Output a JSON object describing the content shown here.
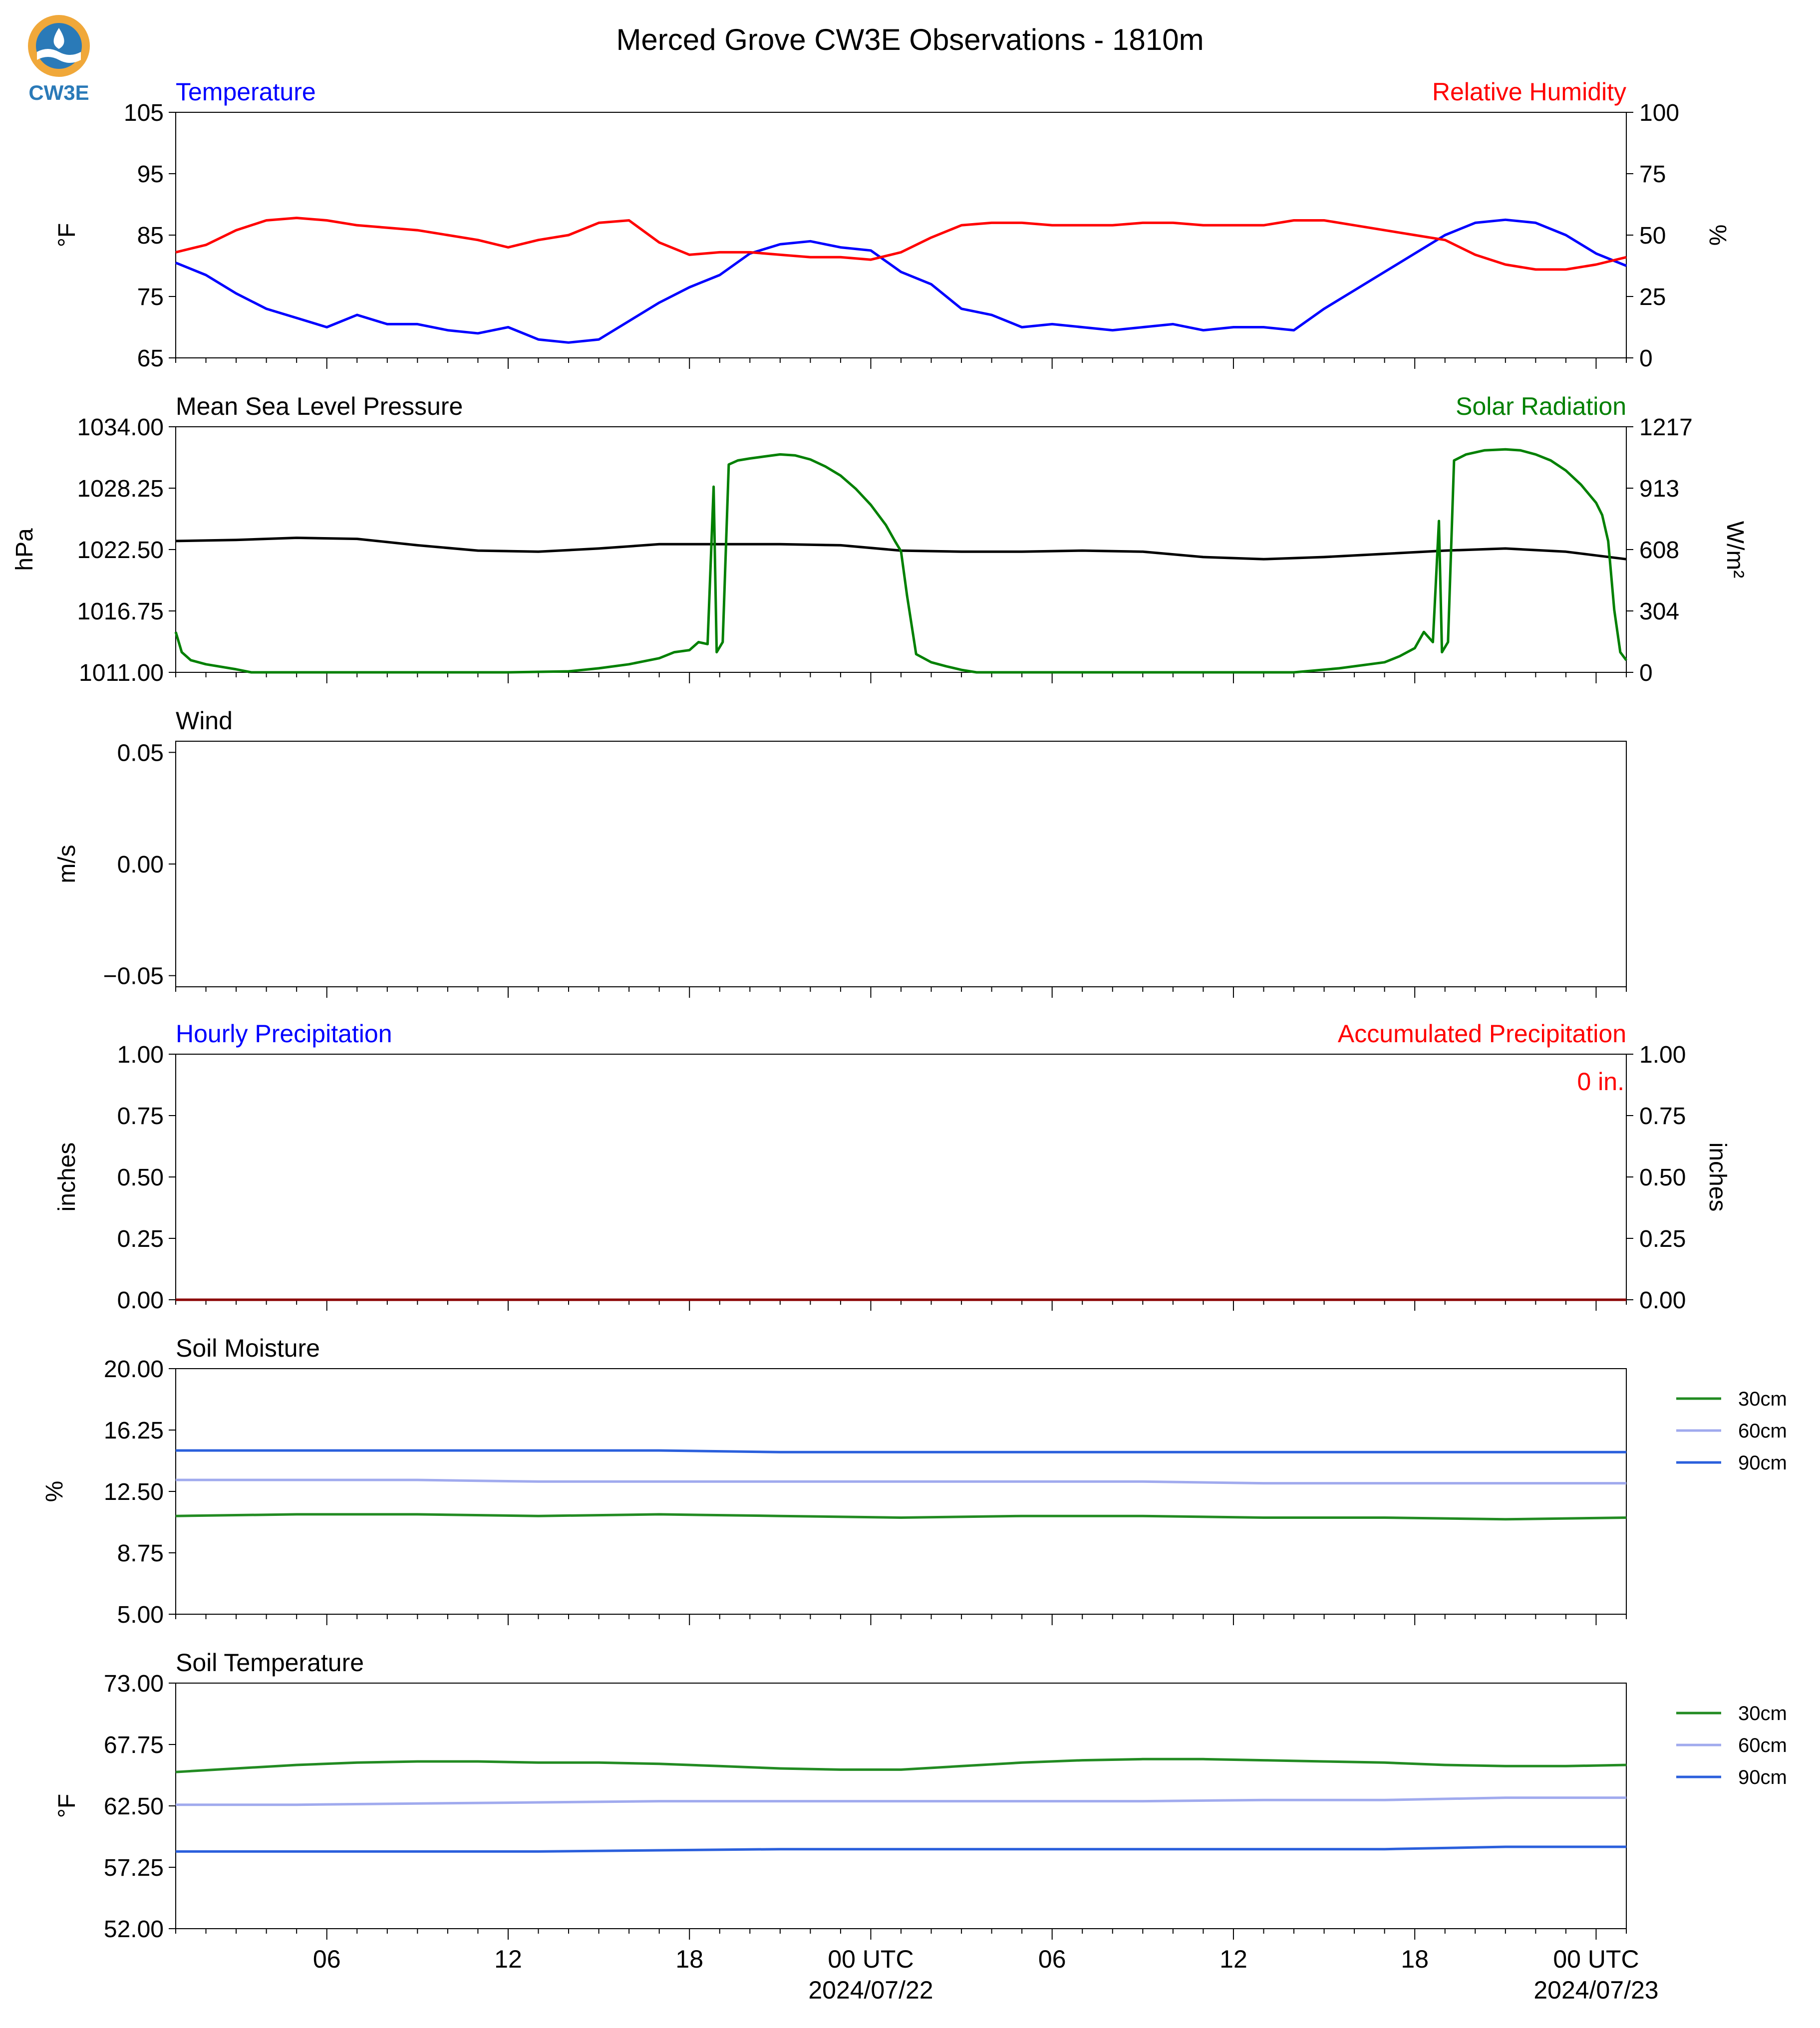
{
  "page": {
    "title": "Merced Grove CW3E Observations - 1810m"
  },
  "logo": {
    "text": "CW3E"
  },
  "time_axis": {
    "start_hours": 0,
    "end_hours": 48,
    "tick_hours": [
      5,
      11,
      17,
      23,
      29,
      35,
      41,
      47
    ],
    "tick_labels": [
      "06",
      "12",
      "18",
      "00 UTC",
      "06",
      "12",
      "18",
      "00 UTC"
    ],
    "date_labels": [
      "",
      "",
      "",
      "2024/07/22",
      "",
      "",
      "",
      "2024/07/23"
    ],
    "minor_tick_hours": [
      0,
      1,
      2,
      3,
      4,
      6,
      7,
      8,
      9,
      10,
      12,
      13,
      14,
      15,
      16,
      18,
      19,
      20,
      21,
      22,
      24,
      25,
      26,
      27,
      28,
      30,
      31,
      32,
      33,
      34,
      36,
      37,
      38,
      39,
      40,
      42,
      43,
      44,
      45,
      46,
      48
    ]
  },
  "chart_data": [
    {
      "type": "line",
      "title_left": "Temperature",
      "title_right": "Relative Humidity",
      "title_left_color": "#0000ff",
      "title_right_color": "#ff0000",
      "ylabel": "°F",
      "ylabel_right": "%",
      "ylim": [
        65,
        105
      ],
      "yticks": [
        "65",
        "75",
        "85",
        "95",
        "105"
      ],
      "ylim_right": [
        0,
        100
      ],
      "yticks_right": [
        "0",
        "25",
        "50",
        "75",
        "100"
      ],
      "series": [
        {
          "axis": "left",
          "color": "#0000ff",
          "x": [
            0,
            1,
            2,
            3,
            4,
            5,
            6,
            7,
            8,
            9,
            10,
            11,
            12,
            13,
            14,
            15,
            16,
            17,
            18,
            19,
            20,
            21,
            22,
            23,
            24,
            25,
            26,
            27,
            28,
            29,
            30,
            31,
            32,
            33,
            34,
            35,
            36,
            37,
            38,
            39,
            40,
            41,
            42,
            43,
            44,
            45,
            46,
            47,
            48
          ],
          "values": [
            80.5,
            78.5,
            75.5,
            73,
            71.5,
            70,
            72,
            70.5,
            70.5,
            69.5,
            69,
            70,
            68,
            67.5,
            68,
            71,
            74,
            76.5,
            78.5,
            82,
            83.5,
            84,
            83,
            82.5,
            79,
            77,
            73,
            72,
            70,
            70.5,
            70,
            69.5,
            70,
            70.5,
            69.5,
            70,
            70,
            69.5,
            73,
            76,
            79,
            82,
            85,
            87,
            87.5,
            87,
            85,
            82,
            80
          ]
        },
        {
          "axis": "right",
          "color": "#ff0000",
          "x": [
            0,
            1,
            2,
            3,
            4,
            5,
            6,
            7,
            8,
            9,
            10,
            11,
            12,
            13,
            14,
            15,
            16,
            17,
            18,
            19,
            20,
            21,
            22,
            23,
            24,
            25,
            26,
            27,
            28,
            29,
            30,
            31,
            32,
            33,
            34,
            35,
            36,
            37,
            38,
            39,
            40,
            41,
            42,
            43,
            44,
            45,
            46,
            47,
            48
          ],
          "values": [
            43,
            46,
            52,
            56,
            57,
            56,
            54,
            53,
            52,
            50,
            48,
            45,
            48,
            50,
            55,
            56,
            47,
            42,
            43,
            43,
            42,
            41,
            41,
            40,
            43,
            49,
            54,
            55,
            55,
            54,
            54,
            54,
            55,
            55,
            54,
            54,
            54,
            56,
            56,
            54,
            52,
            50,
            48,
            42,
            38,
            36,
            36,
            38,
            41
          ]
        }
      ]
    },
    {
      "type": "line",
      "title_left": "Mean Sea Level Pressure",
      "title_right": "Solar Radiation",
      "title_left_color": "#000000",
      "title_right_color": "#008000",
      "ylabel": "hPa",
      "ylabel_right": "W/m²",
      "ylim": [
        1011,
        1034
      ],
      "yticks": [
        "1011.00",
        "1016.75",
        "1022.50",
        "1028.25",
        "1034.00"
      ],
      "ylim_right": [
        0,
        1217
      ],
      "yticks_right": [
        "0",
        "304",
        "608",
        "913",
        "1217"
      ],
      "series": [
        {
          "axis": "left",
          "color": "#000000",
          "x": [
            0,
            2,
            4,
            6,
            8,
            10,
            12,
            14,
            16,
            18,
            20,
            22,
            24,
            26,
            28,
            30,
            32,
            34,
            36,
            38,
            40,
            42,
            44,
            46,
            48
          ],
          "values": [
            1023.3,
            1023.4,
            1023.6,
            1023.5,
            1022.9,
            1022.4,
            1022.3,
            1022.6,
            1023.0,
            1023.0,
            1023.0,
            1022.9,
            1022.4,
            1022.3,
            1022.3,
            1022.4,
            1022.3,
            1021.8,
            1021.6,
            1021.8,
            1022.1,
            1022.4,
            1022.6,
            1022.3,
            1021.6
          ]
        },
        {
          "axis": "right",
          "color": "#008000",
          "x": [
            0,
            0.2,
            0.5,
            1,
            2,
            2.5,
            6,
            11,
            13,
            14,
            15,
            16,
            16.5,
            17,
            17.3,
            17.6,
            17.8,
            17.9,
            18.1,
            18.3,
            18.6,
            19,
            19.5,
            20,
            20.5,
            21,
            21.5,
            22,
            22.5,
            23,
            23.5,
            23.8,
            24,
            24.2,
            24.5,
            25,
            25.5,
            26,
            26.5,
            30,
            35,
            37,
            38.5,
            40,
            40.5,
            41,
            41.3,
            41.6,
            41.8,
            41.9,
            42.1,
            42.3,
            42.7,
            43.3,
            44,
            44.5,
            45,
            45.5,
            46,
            46.5,
            47,
            47.2,
            47.4,
            47.6,
            47.8,
            48
          ],
          "values": [
            200,
            100,
            60,
            40,
            15,
            0,
            0,
            0,
            5,
            20,
            40,
            70,
            100,
            110,
            150,
            140,
            920,
            100,
            150,
            1030,
            1050,
            1060,
            1070,
            1080,
            1075,
            1055,
            1020,
            975,
            910,
            830,
            730,
            650,
            600,
            380,
            90,
            50,
            30,
            12,
            0,
            0,
            0,
            0,
            20,
            50,
            80,
            120,
            200,
            150,
            750,
            100,
            150,
            1050,
            1080,
            1100,
            1105,
            1100,
            1080,
            1050,
            1000,
            930,
            840,
            780,
            650,
            310,
            100,
            60
          ]
        }
      ]
    },
    {
      "type": "line",
      "title_left": "Wind",
      "title_left_color": "#000000",
      "ylabel": "m/s",
      "ylim": [
        -0.055,
        0.055
      ],
      "yticks": [
        "−0.05",
        "0.00",
        "0.05"
      ],
      "ytick_values": [
        -0.05,
        0.0,
        0.05
      ],
      "series": []
    },
    {
      "type": "line",
      "title_left": "Hourly Precipitation",
      "title_right": "Accumulated Precipitation",
      "title_left_color": "#0000ff",
      "title_right_color": "#ff0000",
      "ylabel": "inches",
      "ylabel_right": "inches",
      "ylim": [
        0,
        1
      ],
      "yticks": [
        "0.00",
        "0.25",
        "0.50",
        "0.75",
        "1.00"
      ],
      "ylim_right": [
        0,
        1
      ],
      "yticks_right": [
        "0.00",
        "0.25",
        "0.50",
        "0.75",
        "1.00"
      ],
      "annotation": "0 in.",
      "annotation_color": "#ff0000",
      "series": [
        {
          "axis": "right",
          "color": "#8b0000",
          "x": [
            0,
            48
          ],
          "values": [
            0,
            0
          ]
        }
      ]
    },
    {
      "type": "line",
      "title_left": "Soil Moisture",
      "title_left_color": "#000000",
      "ylabel": "%",
      "ylim": [
        5,
        20
      ],
      "yticks": [
        "5.00",
        "8.75",
        "12.50",
        "16.25",
        "20.00"
      ],
      "legend": [
        "30cm",
        "60cm",
        "90cm"
      ],
      "series": [
        {
          "name": "30cm",
          "axis": "left",
          "color": "#228b22",
          "x": [
            0,
            4,
            8,
            12,
            16,
            20,
            24,
            28,
            32,
            36,
            40,
            44,
            48
          ],
          "values": [
            11.0,
            11.1,
            11.1,
            11.0,
            11.1,
            11.0,
            10.9,
            11.0,
            11.0,
            10.9,
            10.9,
            10.8,
            10.9
          ]
        },
        {
          "name": "60cm",
          "axis": "left",
          "color": "#a0aaee",
          "x": [
            0,
            4,
            8,
            12,
            16,
            20,
            24,
            28,
            32,
            36,
            40,
            44,
            48
          ],
          "values": [
            13.2,
            13.2,
            13.2,
            13.1,
            13.1,
            13.1,
            13.1,
            13.1,
            13.1,
            13.0,
            13.0,
            13.0,
            13.0
          ]
        },
        {
          "name": "90cm",
          "axis": "left",
          "color": "#2a5fdc",
          "x": [
            0,
            4,
            8,
            12,
            16,
            20,
            24,
            28,
            32,
            36,
            40,
            44,
            48
          ],
          "values": [
            15.0,
            15.0,
            15.0,
            15.0,
            15.0,
            14.9,
            14.9,
            14.9,
            14.9,
            14.9,
            14.9,
            14.9,
            14.9
          ]
        }
      ]
    },
    {
      "type": "line",
      "title_left": "Soil Temperature",
      "title_left_color": "#000000",
      "ylabel": "°F",
      "ylim": [
        52,
        73
      ],
      "yticks": [
        "52.00",
        "57.25",
        "62.50",
        "67.75",
        "73.00"
      ],
      "legend": [
        "30cm",
        "60cm",
        "90cm"
      ],
      "series": [
        {
          "name": "30cm",
          "axis": "left",
          "color": "#228b22",
          "x": [
            0,
            2,
            4,
            6,
            8,
            10,
            12,
            14,
            16,
            18,
            20,
            22,
            24,
            26,
            28,
            30,
            32,
            34,
            36,
            38,
            40,
            42,
            44,
            46,
            48
          ],
          "values": [
            65.4,
            65.7,
            66.0,
            66.2,
            66.3,
            66.3,
            66.2,
            66.2,
            66.1,
            65.9,
            65.7,
            65.6,
            65.6,
            65.9,
            66.2,
            66.4,
            66.5,
            66.5,
            66.4,
            66.3,
            66.2,
            66.0,
            65.9,
            65.9,
            66.0
          ]
        },
        {
          "name": "60cm",
          "axis": "left",
          "color": "#a0aaee",
          "x": [
            0,
            4,
            8,
            12,
            16,
            20,
            24,
            28,
            32,
            36,
            40,
            44,
            48
          ],
          "values": [
            62.6,
            62.6,
            62.7,
            62.8,
            62.9,
            62.9,
            62.9,
            62.9,
            62.9,
            63.0,
            63.0,
            63.2,
            63.2
          ]
        },
        {
          "name": "90cm",
          "axis": "left",
          "color": "#2a5fdc",
          "x": [
            0,
            4,
            8,
            12,
            16,
            20,
            24,
            28,
            32,
            36,
            40,
            44,
            48
          ],
          "values": [
            58.6,
            58.6,
            58.6,
            58.6,
            58.7,
            58.8,
            58.8,
            58.8,
            58.8,
            58.8,
            58.8,
            59.0,
            59.0
          ]
        }
      ]
    }
  ]
}
